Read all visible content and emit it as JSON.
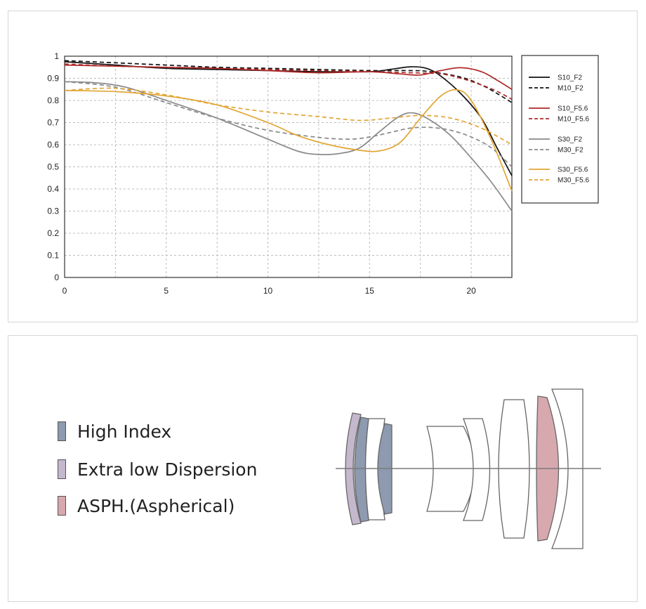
{
  "chart_data": {
    "type": "line",
    "title": "",
    "xlabel": "",
    "ylabel": "",
    "xlim": [
      0,
      22
    ],
    "ylim": [
      0,
      1
    ],
    "x_ticks": [
      "0",
      "5",
      "10",
      "15",
      "20"
    ],
    "y_ticks": [
      "0",
      "0.1",
      "0.2",
      "0.3",
      "0.4",
      "0.5",
      "0.6",
      "0.7",
      "0.8",
      "0.9",
      "1"
    ],
    "grid": true,
    "legend_position": "right",
    "series": [
      {
        "name": "S10_F2",
        "color": "#111111",
        "dash": false,
        "points": [
          [
            0,
            0.975
          ],
          [
            2.5,
            0.96
          ],
          [
            5,
            0.945
          ],
          [
            7.5,
            0.94
          ],
          [
            10,
            0.935
          ],
          [
            12.5,
            0.93
          ],
          [
            15,
            0.93
          ],
          [
            16,
            0.94
          ],
          [
            17,
            0.952
          ],
          [
            17.8,
            0.945
          ],
          [
            18.5,
            0.91
          ],
          [
            19.5,
            0.83
          ],
          [
            20.5,
            0.72
          ],
          [
            21.3,
            0.58
          ],
          [
            22,
            0.46
          ]
        ]
      },
      {
        "name": "M10_F2",
        "color": "#111111",
        "dash": true,
        "points": [
          [
            0,
            0.98
          ],
          [
            2.5,
            0.97
          ],
          [
            5,
            0.96
          ],
          [
            7.5,
            0.95
          ],
          [
            10,
            0.945
          ],
          [
            12.5,
            0.94
          ],
          [
            15,
            0.935
          ],
          [
            17,
            0.935
          ],
          [
            18,
            0.93
          ],
          [
            19.5,
            0.905
          ],
          [
            20.5,
            0.87
          ],
          [
            21.3,
            0.83
          ],
          [
            22,
            0.79
          ]
        ]
      },
      {
        "name": "S10_F5.6",
        "color": "#b02a2a",
        "dash": false,
        "points": [
          [
            0,
            0.96
          ],
          [
            2.5,
            0.955
          ],
          [
            5,
            0.95
          ],
          [
            7.5,
            0.945
          ],
          [
            10,
            0.935
          ],
          [
            12.5,
            0.925
          ],
          [
            15,
            0.93
          ],
          [
            16.5,
            0.92
          ],
          [
            17.5,
            0.915
          ],
          [
            18.5,
            0.935
          ],
          [
            19.5,
            0.948
          ],
          [
            20.5,
            0.93
          ],
          [
            21.3,
            0.89
          ],
          [
            22,
            0.85
          ]
        ]
      },
      {
        "name": "M10_F5.6",
        "color": "#b02a2a",
        "dash": true,
        "points": [
          [
            0,
            0.965
          ],
          [
            2.5,
            0.955
          ],
          [
            5,
            0.95
          ],
          [
            7.5,
            0.945
          ],
          [
            10,
            0.94
          ],
          [
            12.5,
            0.935
          ],
          [
            15,
            0.93
          ],
          [
            17,
            0.925
          ],
          [
            18.5,
            0.92
          ],
          [
            19.5,
            0.9
          ],
          [
            20.5,
            0.87
          ],
          [
            21.3,
            0.84
          ],
          [
            22,
            0.805
          ]
        ]
      },
      {
        "name": "S30_F2",
        "color": "#8a8a8a",
        "dash": false,
        "points": [
          [
            0,
            0.885
          ],
          [
            1.5,
            0.88
          ],
          [
            3,
            0.86
          ],
          [
            5,
            0.8
          ],
          [
            7.5,
            0.72
          ],
          [
            10,
            0.625
          ],
          [
            11.5,
            0.57
          ],
          [
            12.5,
            0.556
          ],
          [
            13.5,
            0.56
          ],
          [
            14.5,
            0.585
          ],
          [
            15.5,
            0.66
          ],
          [
            16.5,
            0.73
          ],
          [
            17.2,
            0.743
          ],
          [
            18,
            0.71
          ],
          [
            19,
            0.64
          ],
          [
            20,
            0.54
          ],
          [
            21,
            0.43
          ],
          [
            22,
            0.3
          ]
        ]
      },
      {
        "name": "M30_F2",
        "color": "#8a8a8a",
        "dash": true,
        "points": [
          [
            0,
            0.885
          ],
          [
            2.5,
            0.86
          ],
          [
            5,
            0.79
          ],
          [
            7.5,
            0.72
          ],
          [
            10,
            0.665
          ],
          [
            12.5,
            0.633
          ],
          [
            14,
            0.625
          ],
          [
            15,
            0.635
          ],
          [
            16,
            0.655
          ],
          [
            17,
            0.675
          ],
          [
            18,
            0.678
          ],
          [
            19,
            0.665
          ],
          [
            20,
            0.635
          ],
          [
            21,
            0.585
          ],
          [
            22,
            0.5
          ]
        ]
      },
      {
        "name": "S30_F5.6",
        "color": "#e2a533",
        "dash": false,
        "points": [
          [
            0,
            0.845
          ],
          [
            2.5,
            0.84
          ],
          [
            5,
            0.82
          ],
          [
            7.5,
            0.78
          ],
          [
            10,
            0.7
          ],
          [
            11.5,
            0.64
          ],
          [
            13,
            0.6
          ],
          [
            14.5,
            0.575
          ],
          [
            15.5,
            0.572
          ],
          [
            16.5,
            0.61
          ],
          [
            17.5,
            0.72
          ],
          [
            18.5,
            0.82
          ],
          [
            19.3,
            0.848
          ],
          [
            20,
            0.8
          ],
          [
            21,
            0.62
          ],
          [
            22,
            0.39
          ]
        ]
      },
      {
        "name": "M30_F5.6",
        "color": "#e2a533",
        "dash": true,
        "points": [
          [
            0,
            0.845
          ],
          [
            2.5,
            0.855
          ],
          [
            5,
            0.825
          ],
          [
            7.5,
            0.78
          ],
          [
            10,
            0.748
          ],
          [
            12.5,
            0.727
          ],
          [
            14.5,
            0.71
          ],
          [
            16,
            0.72
          ],
          [
            17.5,
            0.732
          ],
          [
            19,
            0.72
          ],
          [
            20.5,
            0.675
          ],
          [
            22,
            0.6
          ]
        ]
      }
    ]
  },
  "lens_key": [
    {
      "label": "High Index",
      "color": "#8d9aaf"
    },
    {
      "label": "Extra low Dispersion",
      "color": "#c4b8cd"
    },
    {
      "label": "ASPH.(Aspherical)",
      "color": "#d7a8ae"
    }
  ]
}
